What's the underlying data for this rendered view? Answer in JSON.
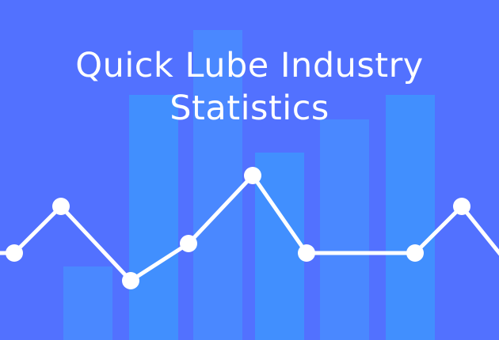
{
  "title_line1": "Quick Lube Industry",
  "title_line2": "Statistics",
  "colors": {
    "background": "#5271ff",
    "bar_a": "#418ffe",
    "bar_b": "#4a88ff",
    "line": "#ffffff"
  }
}
